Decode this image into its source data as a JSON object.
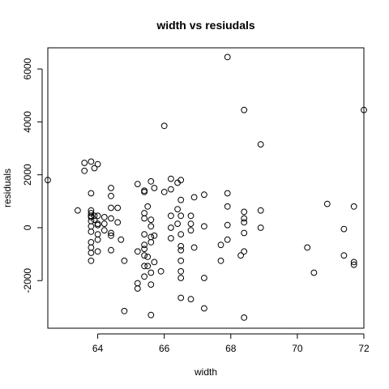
{
  "chart_data": {
    "type": "scatter",
    "title": "width  vs resiudals",
    "xlabel": "width",
    "ylabel": "residuals",
    "xlim": [
      62.5,
      72.0
    ],
    "ylim": [
      -3800,
      6800
    ],
    "x_ticks": [
      "64",
      "66",
      "68",
      "70",
      "72"
    ],
    "y_ticks": [
      "-2000",
      "0",
      "2000",
      "4000",
      "6000"
    ],
    "grid": false,
    "legend": "none",
    "marker": "open-circle",
    "points": [
      [
        62.5,
        1800
      ],
      [
        63.4,
        650
      ],
      [
        63.6,
        2450
      ],
      [
        63.6,
        2150
      ],
      [
        63.8,
        2500
      ],
      [
        63.8,
        1300
      ],
      [
        63.8,
        650
      ],
      [
        63.8,
        550
      ],
      [
        63.8,
        450
      ],
      [
        63.8,
        400
      ],
      [
        63.8,
        250
      ],
      [
        63.8,
        50
      ],
      [
        63.8,
        -150
      ],
      [
        63.8,
        -550
      ],
      [
        63.8,
        -750
      ],
      [
        63.8,
        -950
      ],
      [
        63.8,
        -1250
      ],
      [
        63.9,
        2250
      ],
      [
        63.9,
        450
      ],
      [
        63.9,
        300
      ],
      [
        64.0,
        2400
      ],
      [
        64.0,
        450
      ],
      [
        64.0,
        150
      ],
      [
        64.0,
        100
      ],
      [
        64.0,
        -250
      ],
      [
        64.0,
        -450
      ],
      [
        64.0,
        -900
      ],
      [
        64.2,
        400
      ],
      [
        64.2,
        150
      ],
      [
        64.2,
        -100
      ],
      [
        64.4,
        1500
      ],
      [
        64.4,
        1200
      ],
      [
        64.4,
        750
      ],
      [
        64.4,
        350
      ],
      [
        64.4,
        -200
      ],
      [
        64.4,
        -300
      ],
      [
        64.4,
        -850
      ],
      [
        64.6,
        750
      ],
      [
        64.6,
        200
      ],
      [
        64.7,
        -450
      ],
      [
        64.8,
        -1250
      ],
      [
        64.8,
        -3150
      ],
      [
        65.2,
        1650
      ],
      [
        65.2,
        -900
      ],
      [
        65.2,
        -2100
      ],
      [
        65.2,
        -2300
      ],
      [
        65.4,
        1400
      ],
      [
        65.4,
        1350
      ],
      [
        65.4,
        550
      ],
      [
        65.4,
        350
      ],
      [
        65.4,
        -250
      ],
      [
        65.4,
        -650
      ],
      [
        65.4,
        -800
      ],
      [
        65.4,
        -1050
      ],
      [
        65.4,
        -1450
      ],
      [
        65.4,
        -1850
      ],
      [
        65.5,
        800
      ],
      [
        65.5,
        -1100
      ],
      [
        65.5,
        -1450
      ],
      [
        65.6,
        1750
      ],
      [
        65.6,
        300
      ],
      [
        65.6,
        50
      ],
      [
        65.6,
        -350
      ],
      [
        65.6,
        -550
      ],
      [
        65.6,
        -1700
      ],
      [
        65.6,
        -2150
      ],
      [
        65.6,
        -3300
      ],
      [
        65.7,
        1500
      ],
      [
        65.7,
        -300
      ],
      [
        65.7,
        -1300
      ],
      [
        65.9,
        -1650
      ],
      [
        66.0,
        3850
      ],
      [
        66.0,
        1350
      ],
      [
        66.2,
        1850
      ],
      [
        66.2,
        1450
      ],
      [
        66.2,
        450
      ],
      [
        66.2,
        0
      ],
      [
        66.2,
        -400
      ],
      [
        66.4,
        1700
      ],
      [
        66.4,
        700
      ],
      [
        66.4,
        150
      ],
      [
        66.5,
        1800
      ],
      [
        66.5,
        1050
      ],
      [
        66.5,
        450
      ],
      [
        66.5,
        -250
      ],
      [
        66.5,
        -700
      ],
      [
        66.5,
        -850
      ],
      [
        66.5,
        -1250
      ],
      [
        66.5,
        -1650
      ],
      [
        66.5,
        -1900
      ],
      [
        66.5,
        -2650
      ],
      [
        66.8,
        450
      ],
      [
        66.8,
        150
      ],
      [
        66.8,
        -100
      ],
      [
        66.8,
        -2700
      ],
      [
        66.9,
        1150
      ],
      [
        66.9,
        -750
      ],
      [
        67.2,
        1250
      ],
      [
        67.2,
        50
      ],
      [
        67.2,
        -1900
      ],
      [
        67.2,
        -3050
      ],
      [
        67.7,
        -650
      ],
      [
        67.7,
        -1250
      ],
      [
        67.9,
        6450
      ],
      [
        67.9,
        1300
      ],
      [
        67.9,
        800
      ],
      [
        67.9,
        100
      ],
      [
        67.9,
        -450
      ],
      [
        68.4,
        4450
      ],
      [
        68.4,
        600
      ],
      [
        68.4,
        350
      ],
      [
        68.4,
        200
      ],
      [
        68.4,
        -200
      ],
      [
        68.4,
        -900
      ],
      [
        68.4,
        -3400
      ],
      [
        68.3,
        -1050
      ],
      [
        68.9,
        3150
      ],
      [
        68.9,
        650
      ],
      [
        68.9,
        0
      ],
      [
        70.3,
        -750
      ],
      [
        70.5,
        -1700
      ],
      [
        70.9,
        900
      ],
      [
        71.4,
        -50
      ],
      [
        71.4,
        -1050
      ],
      [
        71.7,
        800
      ],
      [
        71.7,
        -1300
      ],
      [
        71.7,
        -1400
      ],
      [
        72.0,
        4450
      ]
    ]
  }
}
